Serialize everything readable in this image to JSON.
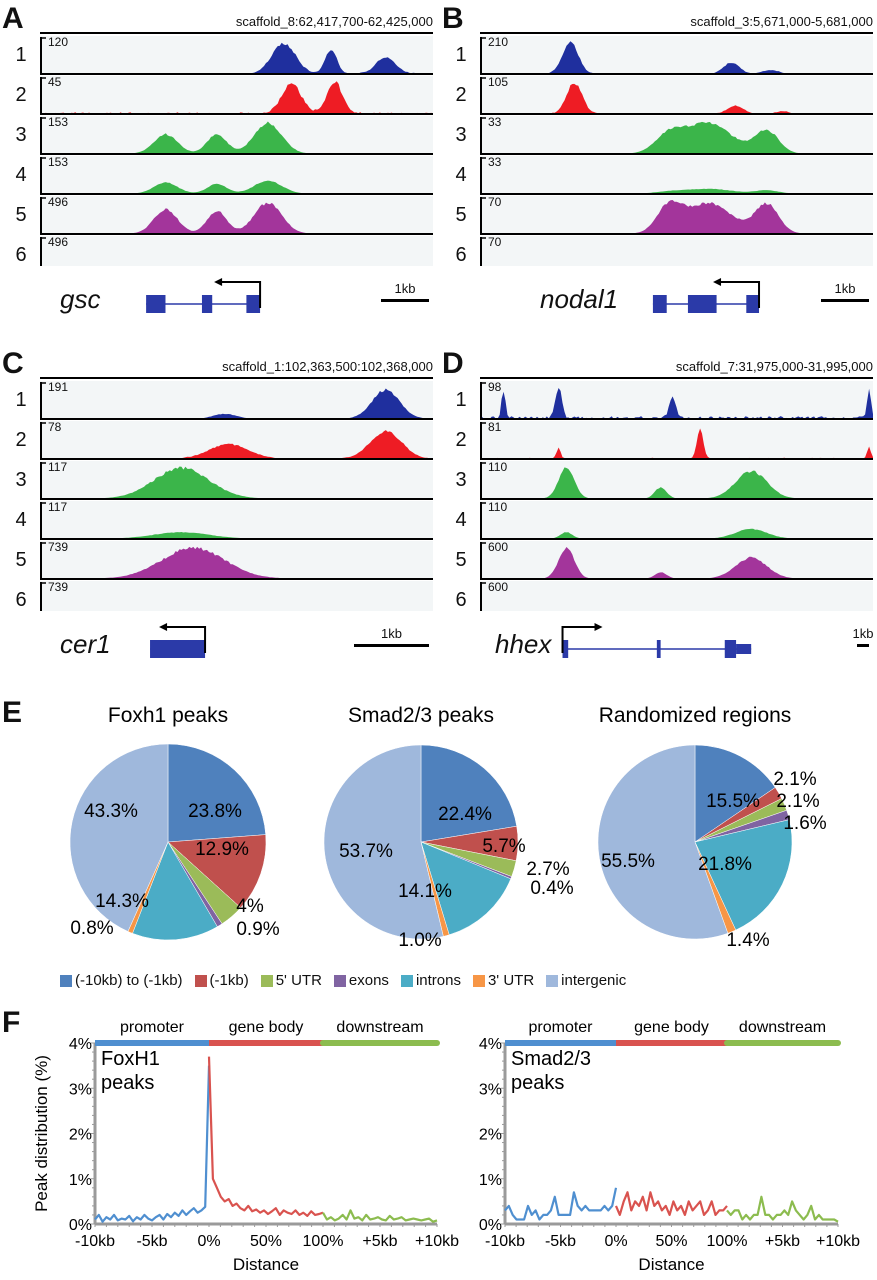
{
  "colors": {
    "track1": "#1f2f9e",
    "track2": "#ee1c24",
    "track3": "#3bb54a",
    "track4": "#3bb54a",
    "track5": "#a3359b",
    "track6": "#a3359b",
    "track_bg": "#f3f6f7",
    "gene": "#2b3aa8",
    "promoter": "#4f8fd0",
    "gene_body": "#d9534f",
    "downstream": "#8cbc4f",
    "axis": "#9a9a9a"
  },
  "panels": {
    "A": {
      "letter": "A",
      "coord": "scaffold_8:62,417,700-62,425,000",
      "gene": "gsc",
      "scale": "1kb",
      "tracks": [
        {
          "num": "1",
          "max": "120"
        },
        {
          "num": "2",
          "max": "45"
        },
        {
          "num": "3",
          "max": "153"
        },
        {
          "num": "4",
          "max": "153"
        },
        {
          "num": "5",
          "max": "496"
        },
        {
          "num": "6",
          "max": "496"
        }
      ]
    },
    "B": {
      "letter": "B",
      "coord": "scaffold_3:5,671,000-5,681,000",
      "gene": "nodal1",
      "scale": "1kb",
      "tracks": [
        {
          "num": "1",
          "max": "210"
        },
        {
          "num": "2",
          "max": "105"
        },
        {
          "num": "3",
          "max": "33"
        },
        {
          "num": "4",
          "max": "33"
        },
        {
          "num": "5",
          "max": "70"
        },
        {
          "num": "6",
          "max": "70"
        }
      ]
    },
    "C": {
      "letter": "C",
      "coord": "scaffold_1:102,363,500:102,368,000",
      "gene": "cer1",
      "scale": "1kb",
      "tracks": [
        {
          "num": "1",
          "max": "191"
        },
        {
          "num": "2",
          "max": "78"
        },
        {
          "num": "3",
          "max": "117"
        },
        {
          "num": "4",
          "max": "117"
        },
        {
          "num": "5",
          "max": "739"
        },
        {
          "num": "6",
          "max": "739"
        }
      ]
    },
    "D": {
      "letter": "D",
      "coord": "scaffold_7:31,975,000-31,995,000",
      "gene": "hhex",
      "scale": "1kb",
      "tracks": [
        {
          "num": "1",
          "max": "98"
        },
        {
          "num": "2",
          "max": "81"
        },
        {
          "num": "3",
          "max": "110"
        },
        {
          "num": "4",
          "max": "110"
        },
        {
          "num": "5",
          "max": "600"
        },
        {
          "num": "6",
          "max": "600"
        }
      ]
    },
    "E": {
      "letter": "E"
    },
    "F": {
      "letter": "F"
    }
  },
  "chart_data": [
    {
      "type": "pie",
      "title": "Foxh1 peaks",
      "categories": [
        "(-10kb) to (-1kb)",
        "(-1kb)",
        "5' UTR",
        "exons",
        "introns",
        "3' UTR",
        "intergenic"
      ],
      "values": [
        23.8,
        12.9,
        4.0,
        0.9,
        14.3,
        0.8,
        43.3
      ],
      "labels": [
        "23.8%",
        "12.9%",
        "4%",
        "0.9%",
        "14.3%",
        "0.8%",
        "43.3%"
      ]
    },
    {
      "type": "pie",
      "title": "Smad2/3 peaks",
      "categories": [
        "(-10kb) to (-1kb)",
        "(-1kb)",
        "5' UTR",
        "exons",
        "introns",
        "3' UTR",
        "intergenic"
      ],
      "values": [
        22.4,
        5.7,
        2.7,
        0.4,
        14.1,
        1.0,
        53.7
      ],
      "labels": [
        "22.4%",
        "5.7%",
        "2.7%",
        "0.4%",
        "14.1%",
        "1.0%",
        "53.7%"
      ]
    },
    {
      "type": "pie",
      "title": "Randomized regions",
      "categories": [
        "(-10kb) to (-1kb)",
        "(-1kb)",
        "5' UTR",
        "exons",
        "introns",
        "3' UTR",
        "intergenic"
      ],
      "values": [
        15.5,
        2.1,
        2.1,
        1.6,
        21.8,
        1.4,
        55.5
      ],
      "labels": [
        "15.5%",
        "2.1%",
        "2.1%",
        "1.6%",
        "21.8%",
        "1.4%",
        "55.5%"
      ]
    },
    {
      "type": "line",
      "title": "FoxH1 peaks",
      "xlabel": "Distance",
      "ylabel": "Peak distribution (%)",
      "ylim": [
        0,
        4
      ],
      "yticks": [
        "0%",
        "1%",
        "2%",
        "3%",
        "4%"
      ],
      "xticks": [
        "-10kb",
        "-5kb",
        "0%",
        "50%",
        "100%",
        "+5kb",
        "+10kb"
      ],
      "regions": [
        "promoter",
        "gene body",
        "downstream"
      ],
      "series": [
        {
          "name": "promoter",
          "values": [
            0.1,
            0.2,
            0.05,
            0.15,
            0.1,
            0.2,
            0.08,
            0.12,
            0.1,
            0.18,
            0.06,
            0.15,
            0.1,
            0.2,
            0.12,
            0.08,
            0.15,
            0.2,
            0.1,
            0.22,
            0.15,
            0.25,
            0.18,
            0.3,
            0.2,
            0.28,
            0.35,
            0.25,
            0.3,
            0.38,
            3.5
          ]
        },
        {
          "name": "gene body",
          "values": [
            3.7,
            1.0,
            0.8,
            0.6,
            0.5,
            0.55,
            0.4,
            0.45,
            0.35,
            0.3,
            0.4,
            0.28,
            0.32,
            0.25,
            0.3,
            0.22,
            0.28,
            0.35,
            0.2,
            0.3,
            0.25,
            0.22,
            0.3,
            0.2,
            0.25,
            0.18,
            0.28,
            0.2,
            0.22,
            0.25
          ]
        },
        {
          "name": "downstream",
          "values": [
            0.25,
            0.1,
            0.15,
            0.08,
            0.12,
            0.2,
            0.1,
            0.3,
            0.12,
            0.15,
            0.08,
            0.2,
            0.1,
            0.12,
            0.15,
            0.1,
            0.08,
            0.18,
            0.1,
            0.12,
            0.15,
            0.08,
            0.1,
            0.12,
            0.1,
            0.08,
            0.1,
            0.12,
            0.05,
            0.08
          ]
        }
      ]
    },
    {
      "type": "line",
      "title": "Smad2/3 peaks",
      "xlabel": "Distance",
      "ylabel": "",
      "ylim": [
        0,
        4
      ],
      "yticks": [
        "0%",
        "1%",
        "2%",
        "3%",
        "4%"
      ],
      "xticks": [
        "-10kb",
        "-5kb",
        "0%",
        "50%",
        "100%",
        "+5kb",
        "+10kb"
      ],
      "regions": [
        "promoter",
        "gene body",
        "downstream"
      ],
      "series": [
        {
          "name": "promoter",
          "values": [
            0.3,
            0.4,
            0.2,
            0.1,
            0.1,
            0.1,
            0.4,
            0.2,
            0.3,
            0.1,
            0.2,
            0.2,
            0.3,
            0.6,
            0.2,
            0.2,
            0.2,
            0.2,
            0.7,
            0.4,
            0.3,
            0.4,
            0.3,
            0.3,
            0.3,
            0.3,
            0.4,
            0.3,
            0.4,
            0.8
          ]
        },
        {
          "name": "gene body",
          "values": [
            0.4,
            0.2,
            0.5,
            0.7,
            0.3,
            0.5,
            0.4,
            0.6,
            0.3,
            0.7,
            0.4,
            0.5,
            0.3,
            0.4,
            0.2,
            0.5,
            0.3,
            0.4,
            0.2,
            0.5,
            0.3,
            0.4,
            0.5,
            0.2,
            0.3,
            0.5,
            0.2,
            0.3,
            0.3,
            0.4
          ]
        },
        {
          "name": "downstream",
          "values": [
            0.3,
            0.2,
            0.3,
            0.3,
            0.1,
            0.2,
            0.1,
            0.2,
            0.2,
            0.6,
            0.2,
            0.2,
            0.1,
            0.2,
            0.2,
            0.3,
            0.2,
            0.5,
            0.3,
            0.2,
            0.1,
            0.2,
            0.4,
            0.1,
            0.2,
            0.1,
            0.1,
            0.1,
            0.1,
            0.05
          ]
        }
      ]
    }
  ],
  "legend": [
    {
      "label": "(-10kb) to (-1kb)",
      "color": "#4f81bd"
    },
    {
      "label": "(-1kb)",
      "color": "#c0504d"
    },
    {
      "label": "5' UTR",
      "color": "#9bbb59"
    },
    {
      "label": "exons",
      "color": "#8064a2"
    },
    {
      "label": "introns",
      "color": "#4bacc6"
    },
    {
      "label": "3' UTR",
      "color": "#f79646"
    },
    {
      "label": "intergenic",
      "color": "#9fb8dc"
    }
  ]
}
